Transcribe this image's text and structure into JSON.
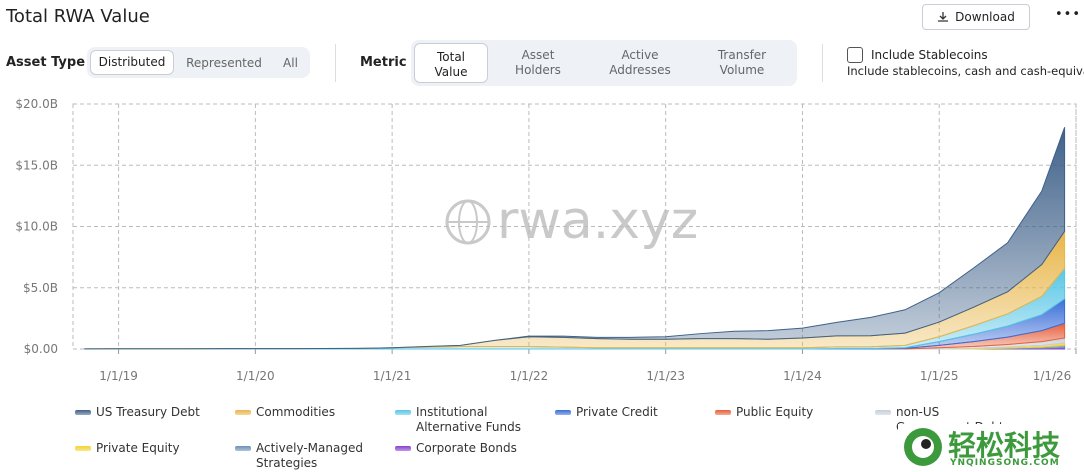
{
  "header": {
    "title": "Total RWA Value",
    "download": "Download",
    "menu": "•••"
  },
  "controls": {
    "asset_type_label": "Asset Type",
    "asset_types": [
      "Distributed",
      "Represented",
      "All"
    ],
    "metric_label": "Metric",
    "metrics": [
      "Total Value",
      "Asset Holders",
      "Active Addresses",
      "Transfer Volume"
    ],
    "stablecoins_label": "Include Stablecoins",
    "stablecoins_note": "Include stablecoins, cash and cash-equivale"
  },
  "chart_data": {
    "type": "stacked-area",
    "watermark": "rwa.xyz",
    "x": [
      "10/1/18",
      "1/1/19",
      "4/1/19",
      "7/1/19",
      "10/1/19",
      "1/1/20",
      "4/1/20",
      "7/1/20",
      "10/1/20",
      "1/1/21",
      "4/1/21",
      "7/1/21",
      "10/1/21",
      "1/1/22",
      "4/1/22",
      "7/1/22",
      "10/1/22",
      "1/1/23",
      "4/1/23",
      "7/1/23",
      "10/1/23",
      "1/1/24",
      "4/1/24",
      "7/1/24",
      "10/1/24",
      "1/1/25",
      "4/1/25",
      "7/1/25",
      "10/1/25",
      "12/1/25"
    ],
    "xlim": [
      "9/1/18",
      "1/1/26"
    ],
    "xticks": [
      "1/1/19",
      "1/1/20",
      "1/1/21",
      "1/1/22",
      "1/1/23",
      "1/1/24",
      "1/1/25",
      "1/1/26"
    ],
    "ylim": [
      0,
      20
    ],
    "yticks": [
      {
        "value": 0,
        "label": "$0.00"
      },
      {
        "value": 5,
        "label": "$5.0B"
      },
      {
        "value": 10,
        "label": "$10.0B"
      },
      {
        "value": 15,
        "label": "$15.0B"
      },
      {
        "value": 20,
        "label": "$20.0B"
      }
    ],
    "grid": true,
    "series": [
      {
        "name": "US Treasury Debt",
        "color": "#3f6189",
        "values": [
          0,
          0,
          0,
          0,
          0,
          0,
          0,
          0,
          0,
          0,
          0,
          0,
          0,
          0.05,
          0.1,
          0.1,
          0.15,
          0.2,
          0.4,
          0.6,
          0.7,
          0.8,
          1.1,
          1.5,
          1.9,
          2.4,
          3.2,
          4.0,
          6.0,
          8.5
        ]
      },
      {
        "name": "Commodities",
        "color": "#e8b64a",
        "values": [
          0,
          0,
          0,
          0,
          0,
          0,
          0,
          0,
          0,
          0,
          0.05,
          0.1,
          0.5,
          0.8,
          0.8,
          0.75,
          0.7,
          0.7,
          0.75,
          0.75,
          0.7,
          0.8,
          0.9,
          0.9,
          1.0,
          1.2,
          1.5,
          1.8,
          2.6,
          3.0
        ]
      },
      {
        "name": "Institutional Alternative Funds",
        "color": "#58c6e6",
        "values": [
          0.01,
          0.02,
          0.02,
          0.02,
          0.03,
          0.03,
          0.03,
          0.04,
          0.05,
          0.1,
          0.15,
          0.2,
          0.2,
          0.2,
          0.15,
          0.1,
          0.1,
          0.1,
          0.1,
          0.1,
          0.1,
          0.1,
          0.15,
          0.15,
          0.2,
          0.4,
          0.7,
          1.0,
          1.5,
          2.5
        ]
      },
      {
        "name": "Private Credit",
        "color": "#3a6ed8",
        "values": [
          0,
          0,
          0,
          0,
          0,
          0,
          0,
          0,
          0,
          0,
          0,
          0,
          0,
          0,
          0,
          0,
          0,
          0,
          0,
          0,
          0,
          0,
          0.02,
          0.03,
          0.05,
          0.3,
          0.6,
          0.9,
          1.3,
          2.0
        ]
      },
      {
        "name": "Public Equity",
        "color": "#e8603c",
        "values": [
          0,
          0,
          0,
          0,
          0,
          0,
          0,
          0,
          0,
          0,
          0,
          0,
          0,
          0,
          0,
          0,
          0,
          0,
          0,
          0,
          0,
          0,
          0,
          0,
          0.05,
          0.2,
          0.4,
          0.6,
          0.9,
          1.2
        ]
      },
      {
        "name": "non-US Government Debt",
        "color": "#c5cfdb",
        "values": [
          0,
          0,
          0,
          0,
          0,
          0,
          0,
          0,
          0,
          0,
          0,
          0,
          0,
          0,
          0,
          0,
          0,
          0,
          0,
          0,
          0,
          0,
          0,
          0,
          0,
          0.1,
          0.15,
          0.2,
          0.3,
          0.4
        ]
      },
      {
        "name": "Private Equity",
        "color": "#f3d22e",
        "values": [
          0,
          0,
          0,
          0,
          0,
          0,
          0,
          0,
          0,
          0,
          0,
          0,
          0,
          0,
          0,
          0,
          0,
          0,
          0,
          0,
          0,
          0,
          0,
          0,
          0,
          0,
          0.05,
          0.1,
          0.15,
          0.2
        ]
      },
      {
        "name": "Actively-Managed Strategies",
        "color": "#6b8fb8",
        "values": [
          0,
          0,
          0,
          0,
          0,
          0,
          0,
          0,
          0,
          0,
          0,
          0,
          0,
          0,
          0,
          0,
          0,
          0,
          0,
          0,
          0,
          0,
          0,
          0,
          0,
          0,
          0,
          0.05,
          0.1,
          0.2
        ]
      },
      {
        "name": "Corporate Bonds",
        "color": "#8a3fd1",
        "values": [
          0,
          0,
          0,
          0,
          0,
          0,
          0,
          0,
          0,
          0,
          0,
          0,
          0,
          0,
          0,
          0,
          0,
          0,
          0,
          0,
          0,
          0,
          0,
          0,
          0,
          0,
          0,
          0.02,
          0.05,
          0.1
        ]
      }
    ]
  },
  "overlay": {
    "brand": "轻松科技",
    "site": "YNQINGSONG.COM"
  }
}
